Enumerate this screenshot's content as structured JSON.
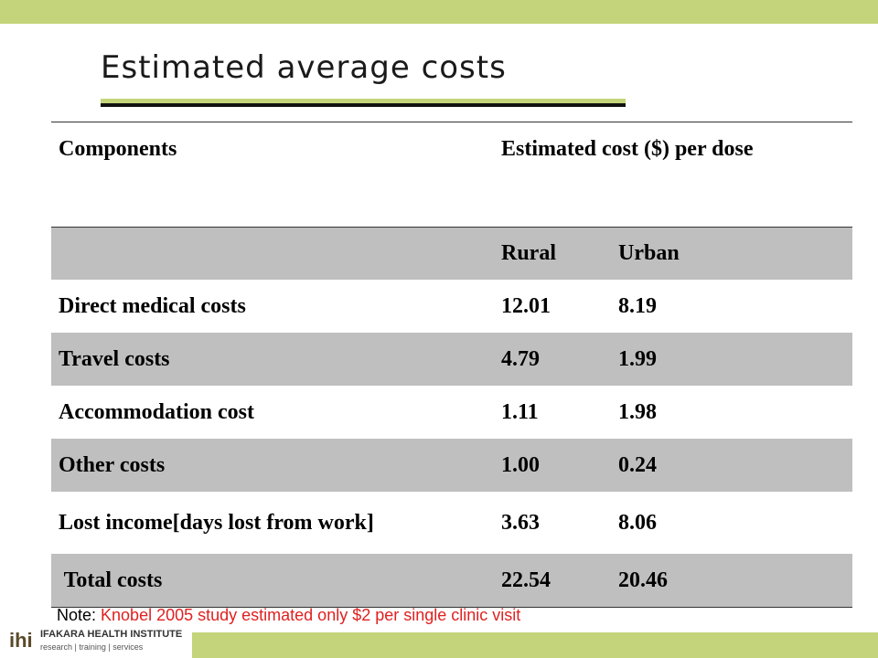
{
  "theme": {
    "accent_green": "#c3d47a",
    "shade_gray": "#bfbfbf",
    "note_red": "#e02020"
  },
  "slide": {
    "title": "Estimated average costs"
  },
  "table": {
    "headers": {
      "components": "Components",
      "cost": "Estimated cost ($) per dose"
    },
    "subheaders": {
      "rural": "Rural",
      "urban": "Urban"
    },
    "rows": [
      {
        "component": "Direct medical costs",
        "rural": "12.01",
        "urban": "8.19"
      },
      {
        "component": "Travel costs",
        "rural": "4.79",
        "urban": "1.99"
      },
      {
        "component": "Accommodation cost",
        "rural": "1.11",
        "urban": "1.98"
      },
      {
        "component": "Other costs",
        "rural": "1.00",
        "urban": "0.24"
      },
      {
        "component": "Lost income[days lost from work]",
        "rural": "3.63",
        "urban": "8.06"
      },
      {
        "component": " Total costs",
        "rural": "22.54",
        "urban": "20.46"
      }
    ]
  },
  "note": {
    "label": "Note: ",
    "text": "Knobel 2005 study estimated only $2 per single clinic visit"
  },
  "logo": {
    "mark": "ihi",
    "name": "IFAKARA HEALTH INSTITUTE",
    "tagline": "research | training | services"
  }
}
